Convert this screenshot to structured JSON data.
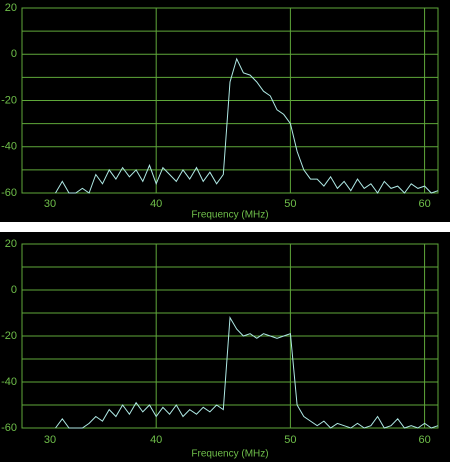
{
  "chart_data": [
    {
      "type": "line",
      "xlabel": "Frequency (MHz)",
      "color": "#aee8e4",
      "grid_color": "#5fa83a",
      "label_color": "#6fbf4a",
      "background": "#000000",
      "xlim": [
        30,
        61
      ],
      "ylim": [
        -60,
        20
      ],
      "xticks": [
        30,
        40,
        50,
        60
      ],
      "yticks": [
        20,
        0,
        -20,
        -40,
        -60
      ],
      "minor_yticks": [
        10,
        -10,
        -30,
        -50
      ],
      "x": [
        32.5,
        33,
        33.5,
        34,
        34.5,
        35,
        35.5,
        36,
        36.5,
        37,
        37.5,
        38,
        38.5,
        39,
        39.5,
        40,
        40.5,
        41,
        41.5,
        42,
        42.5,
        43,
        43.5,
        44,
        44.5,
        45,
        45.5,
        46,
        46.5,
        47,
        47.5,
        48,
        48.5,
        49,
        49.5,
        50,
        50.5,
        51,
        51.5,
        52,
        52.5,
        53,
        53.5,
        54,
        54.5,
        55,
        55.5,
        56,
        56.5,
        57,
        57.5,
        58,
        58.5,
        59,
        59.5,
        60,
        60.5,
        61
      ],
      "values": [
        -60,
        -55,
        -60,
        -60,
        -58,
        -60,
        -52,
        -56,
        -50,
        -54,
        -49,
        -53,
        -50,
        -55,
        -48,
        -56,
        -49,
        -52,
        -55,
        -50,
        -54,
        -49,
        -55,
        -51,
        -56,
        -52,
        -12,
        -2,
        -8,
        -9,
        -12,
        -16,
        -18,
        -24,
        -26,
        -30,
        -42,
        -50,
        -54,
        -54,
        -57,
        -53,
        -58,
        -55,
        -59,
        -54,
        -58,
        -56,
        -60,
        -55,
        -58,
        -57,
        -60,
        -56,
        -58,
        -57,
        -60,
        -59
      ]
    },
    {
      "type": "line",
      "xlabel": "Frequency (MHz)",
      "color": "#aee8e4",
      "grid_color": "#5fa83a",
      "label_color": "#6fbf4a",
      "background": "#000000",
      "xlim": [
        30,
        61
      ],
      "ylim": [
        -60,
        20
      ],
      "xticks": [
        30,
        40,
        50,
        60
      ],
      "yticks": [
        20,
        0,
        -20,
        -40,
        -60
      ],
      "minor_yticks": [
        10,
        -10,
        -30,
        -50
      ],
      "x": [
        32.5,
        33,
        33.5,
        34,
        34.5,
        35,
        35.5,
        36,
        36.5,
        37,
        37.5,
        38,
        38.5,
        39,
        39.5,
        40,
        40.5,
        41,
        41.5,
        42,
        42.5,
        43,
        43.5,
        44,
        44.5,
        45,
        45.5,
        46,
        46.5,
        47,
        47.5,
        48,
        48.5,
        49,
        49.5,
        50,
        50.5,
        51,
        51.5,
        52,
        52.5,
        53,
        53.5,
        54,
        54.5,
        55,
        55.5,
        56,
        56.5,
        57,
        57.5,
        58,
        58.5,
        59,
        59.5,
        60,
        60.5,
        61
      ],
      "values": [
        -60,
        -56,
        -60,
        -60,
        -60,
        -58,
        -55,
        -57,
        -52,
        -55,
        -50,
        -54,
        -49,
        -53,
        -50,
        -55,
        -51,
        -54,
        -50,
        -55,
        -52,
        -54,
        -51,
        -53,
        -50,
        -52,
        -12,
        -17,
        -20,
        -19,
        -21,
        -19,
        -20,
        -21,
        -20,
        -19,
        -50,
        -55,
        -57,
        -59,
        -57,
        -60,
        -58,
        -59,
        -60,
        -58,
        -60,
        -59,
        -55,
        -60,
        -59,
        -56,
        -60,
        -59,
        -60,
        -58,
        -60,
        -59
      ]
    }
  ]
}
